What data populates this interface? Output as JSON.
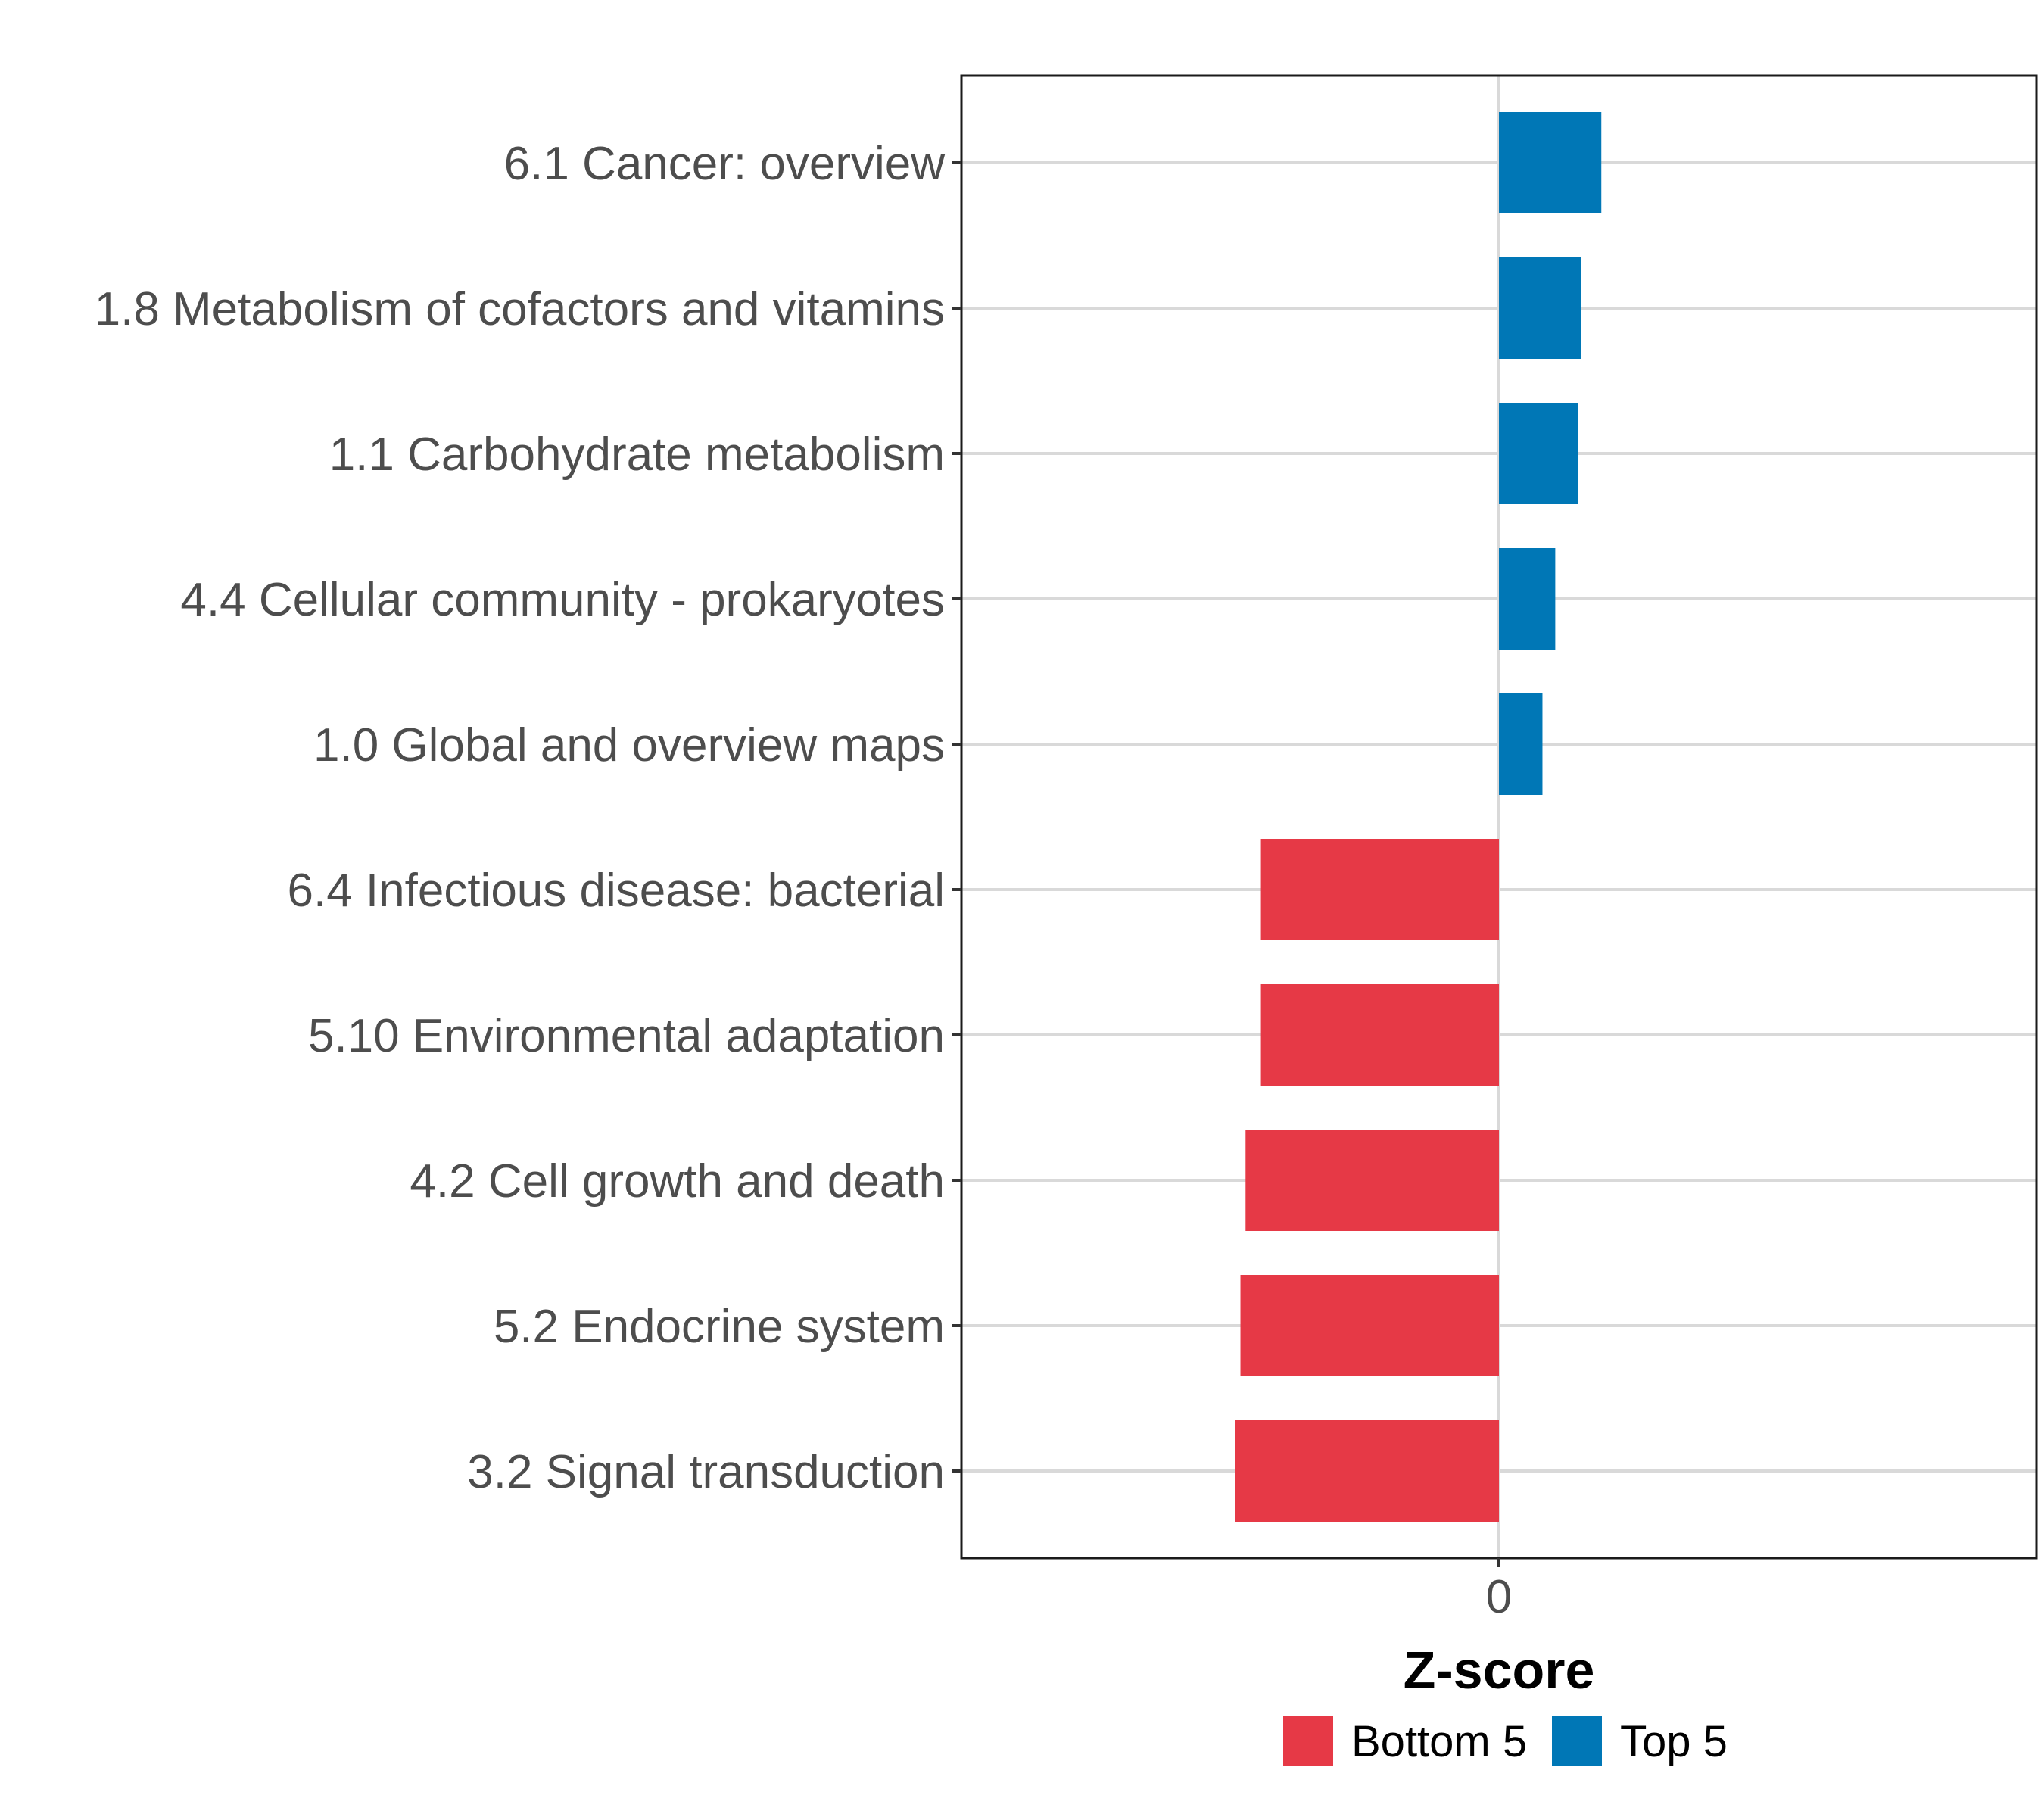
{
  "chart_data": {
    "type": "bar",
    "orientation": "horizontal",
    "title": "",
    "xlabel": "Z-score",
    "ylabel": "",
    "xlim": [
      -2.1,
      2.1
    ],
    "xticks": [
      0
    ],
    "xtick_labels": [
      "0"
    ],
    "categories": [
      "6.1 Cancer: overview",
      "1.8 Metabolism of cofactors and vitamins",
      "1.1 Carbohydrate metabolism",
      "4.4 Cellular community - prokaryotes",
      "1.0 Global and overview maps",
      "6.4 Infectious disease: bacterial",
      "5.10 Environmental adaptation",
      "4.2 Cell growth and death",
      "5.2 Endocrine system",
      "3.2 Signal transduction"
    ],
    "values": [
      0.4,
      0.32,
      0.31,
      0.22,
      0.17,
      -0.93,
      -0.93,
      -0.99,
      -1.01,
      -1.03
    ],
    "groups": [
      "Top 5",
      "Top 5",
      "Top 5",
      "Top 5",
      "Top 5",
      "Bottom 5",
      "Bottom 5",
      "Bottom 5",
      "Bottom 5",
      "Bottom 5"
    ],
    "legend": [
      {
        "name": "Bottom 5",
        "color": "#E63946"
      },
      {
        "name": "Top 5",
        "color": "#0077B6"
      }
    ],
    "legend_position": "bottom",
    "grid": true
  }
}
